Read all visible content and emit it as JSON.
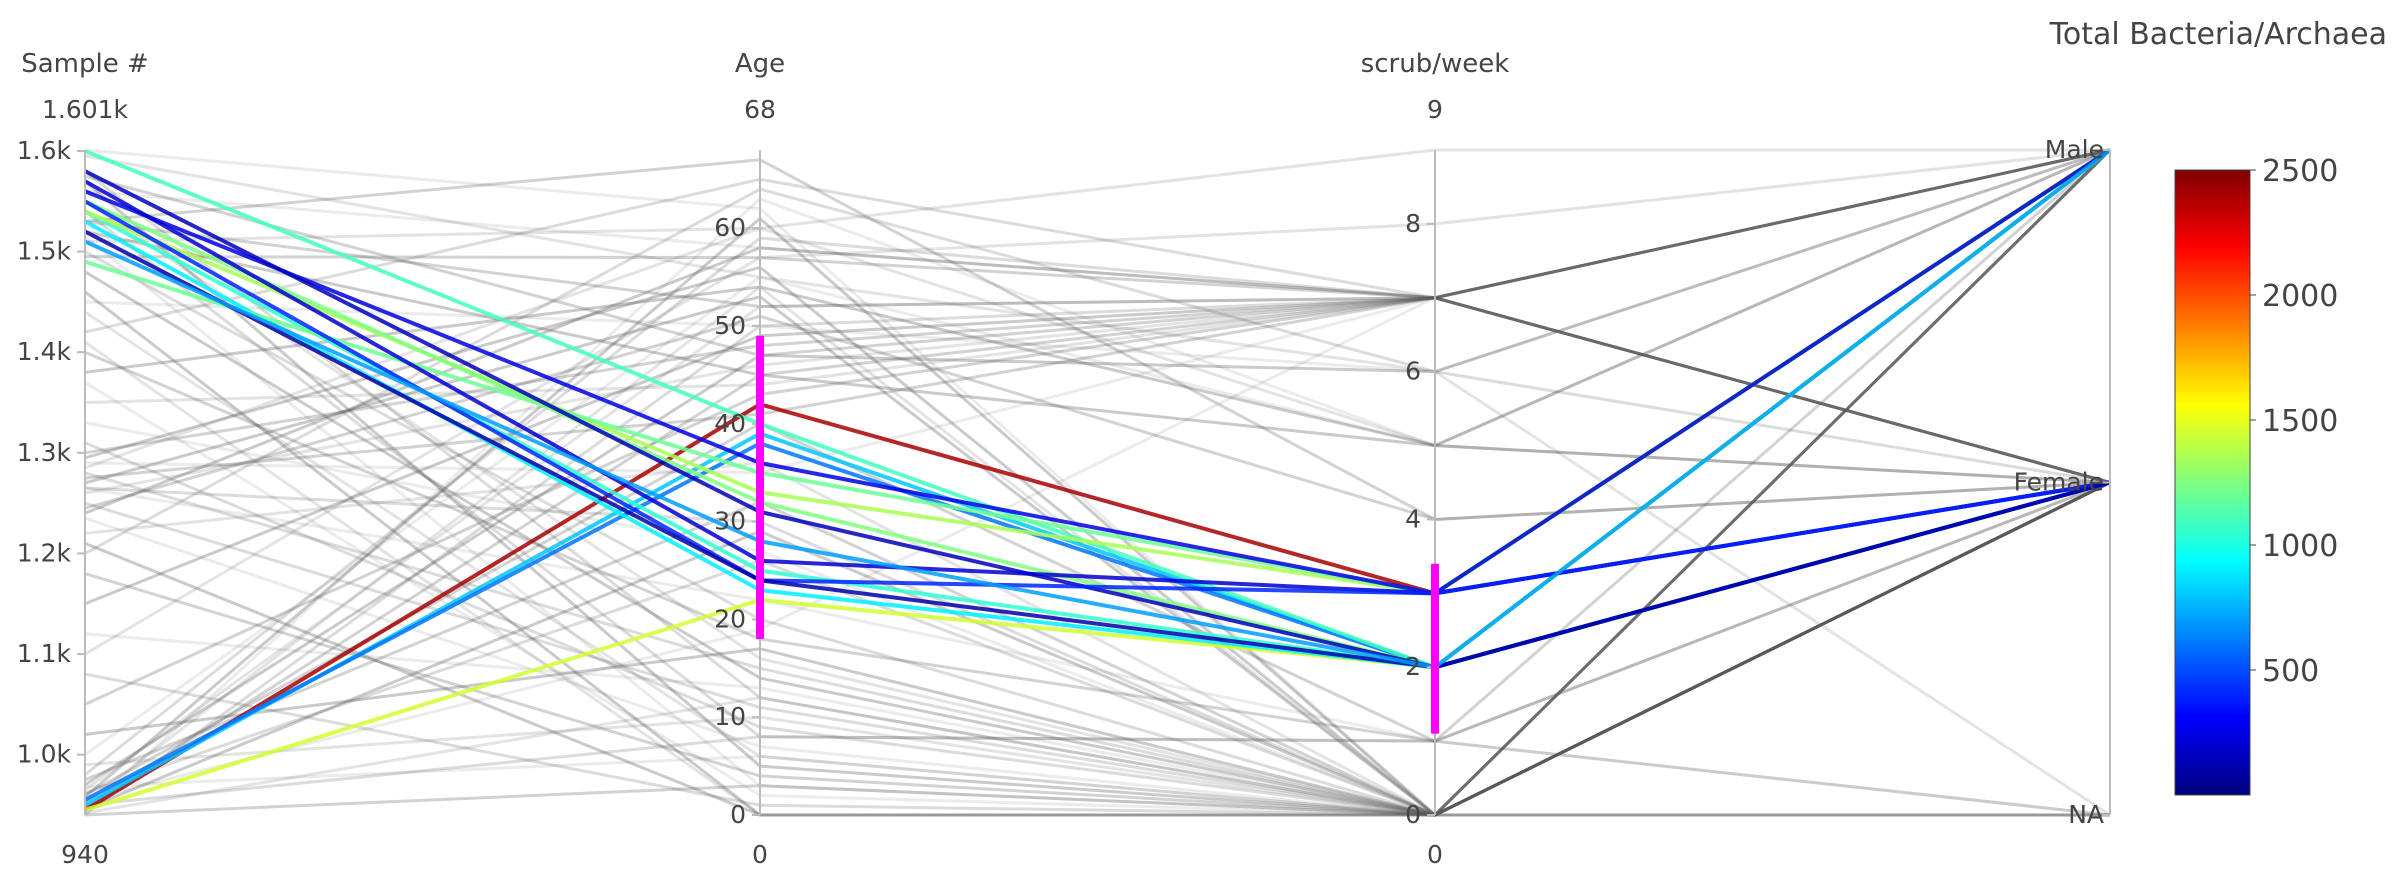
{
  "chart_data": {
    "type": "parallel_coordinates",
    "title": "",
    "dimensions": [
      {
        "label": "Sample #",
        "range": [
          940,
          1601
        ],
        "max_label": "1.601k",
        "min_label": "940",
        "ticks": [
          {
            "v": 1000,
            "label": "1.0k"
          },
          {
            "v": 1100,
            "label": "1.1k"
          },
          {
            "v": 1200,
            "label": "1.2k"
          },
          {
            "v": 1300,
            "label": "1.3k"
          },
          {
            "v": 1400,
            "label": "1.4k"
          },
          {
            "v": 1500,
            "label": "1.5k"
          },
          {
            "v": 1600,
            "label": "1.6k"
          }
        ]
      },
      {
        "label": "Age",
        "range": [
          0,
          68
        ],
        "max_label": "68",
        "min_label": "0",
        "ticks": [
          {
            "v": 0,
            "label": "0"
          },
          {
            "v": 10,
            "label": "10"
          },
          {
            "v": 20,
            "label": "20"
          },
          {
            "v": 30,
            "label": "30"
          },
          {
            "v": 40,
            "label": "40"
          },
          {
            "v": 50,
            "label": "50"
          },
          {
            "v": 60,
            "label": "60"
          }
        ],
        "constraint": [
          18,
          49
        ]
      },
      {
        "label": "scrub/week",
        "range": [
          0,
          9
        ],
        "max_label": "9",
        "min_label": "0",
        "ticks": [
          {
            "v": 0,
            "label": "0"
          },
          {
            "v": 2,
            "label": "2"
          },
          {
            "v": 4,
            "label": "4"
          },
          {
            "v": 6,
            "label": "6"
          },
          {
            "v": 8,
            "label": "8"
          }
        ],
        "constraint": [
          1.1,
          3.4
        ]
      },
      {
        "label": "",
        "range": [
          0,
          2
        ],
        "ticks": [
          {
            "v": 0,
            "label": "NA"
          },
          {
            "v": 1,
            "label": "Female"
          },
          {
            "v": 2,
            "label": "Male"
          }
        ]
      }
    ],
    "colorscale": {
      "title": "Total Bacteria/Archaea",
      "range": [
        0,
        2500
      ],
      "ticks": [
        500,
        1000,
        1500,
        2000,
        2500
      ],
      "colors": [
        "#00007f",
        "#0000ff",
        "#007fff",
        "#00ffff",
        "#7fff7f",
        "#ffff00",
        "#ff7f00",
        "#ff0000",
        "#7f0000"
      ]
    },
    "highlighted_lines": [
      {
        "values": [
          945,
          42,
          3,
          1
        ],
        "color_value": 2400
      },
      {
        "values": [
          945,
          22,
          2,
          1
        ],
        "color_value": 1450
      },
      {
        "values": [
          950,
          39,
          2,
          2
        ],
        "color_value": 800
      },
      {
        "values": [
          955,
          38,
          2,
          2
        ],
        "color_value": 600
      },
      {
        "values": [
          1600,
          40,
          2,
          2
        ],
        "color_value": 1100
      },
      {
        "values": [
          1540,
          25,
          2,
          1
        ],
        "color_value": 1050
      },
      {
        "values": [
          1540,
          33,
          3,
          2
        ],
        "color_value": 1350
      },
      {
        "values": [
          1530,
          23,
          2,
          1
        ],
        "color_value": 900
      },
      {
        "values": [
          1490,
          35,
          3,
          2
        ],
        "color_value": 1200
      },
      {
        "values": [
          1550,
          32,
          2,
          2
        ],
        "color_value": 1250
      },
      {
        "values": [
          1560,
          36,
          3,
          1
        ],
        "color_value": 250
      },
      {
        "values": [
          1580,
          31,
          2,
          1
        ],
        "color_value": 150
      },
      {
        "values": [
          1570,
          26,
          3,
          2
        ],
        "color_value": 200
      },
      {
        "values": [
          1550,
          24,
          3,
          1
        ],
        "color_value": 400
      },
      {
        "values": [
          1520,
          24,
          2,
          1
        ],
        "color_value": 100
      },
      {
        "values": [
          1510,
          28,
          2,
          2
        ],
        "color_value": 700
      }
    ],
    "context_lines": [
      [
        1601,
        62,
        0,
        1
      ],
      [
        1595,
        55,
        6,
        0
      ],
      [
        1580,
        12,
        0,
        2
      ],
      [
        1575,
        47,
        7,
        2
      ],
      [
        1570,
        5,
        0,
        1
      ],
      [
        1560,
        58,
        7,
        1
      ],
      [
        1550,
        16,
        0,
        2
      ],
      [
        1540,
        8,
        1,
        0
      ],
      [
        1530,
        52,
        7,
        1
      ],
      [
        1520,
        45,
        5,
        2
      ],
      [
        1515,
        3,
        0,
        1
      ],
      [
        1510,
        60,
        9,
        2
      ],
      [
        1500,
        20,
        0,
        2
      ],
      [
        1495,
        57,
        7,
        1
      ],
      [
        1480,
        14,
        0,
        1
      ],
      [
        1450,
        50,
        6,
        2
      ],
      [
        1440,
        6,
        0,
        0
      ],
      [
        1420,
        65,
        7,
        1
      ],
      [
        1400,
        18,
        1,
        2
      ],
      [
        1380,
        54,
        5,
        1
      ],
      [
        1370,
        2,
        0,
        1
      ],
      [
        1350,
        44,
        7,
        2
      ],
      [
        1310,
        9,
        0,
        1
      ],
      [
        1300,
        48,
        7,
        2
      ],
      [
        1295,
        56,
        0,
        1
      ],
      [
        1290,
        35,
        7,
        1
      ],
      [
        1285,
        60,
        5,
        2
      ],
      [
        1280,
        15,
        0,
        1
      ],
      [
        1275,
        41,
        7,
        2
      ],
      [
        1270,
        53,
        0,
        1
      ],
      [
        1265,
        22,
        1,
        0
      ],
      [
        1260,
        46,
        7,
        1
      ],
      [
        1250,
        11,
        0,
        2
      ],
      [
        1245,
        51,
        4,
        1
      ],
      [
        1240,
        58,
        7,
        2
      ],
      [
        1235,
        7,
        0,
        1
      ],
      [
        1220,
        36,
        0,
        1
      ],
      [
        1200,
        64,
        6,
        1
      ],
      [
        1180,
        4,
        0,
        2
      ],
      [
        1150,
        49,
        7,
        1
      ],
      [
        1120,
        13,
        0,
        1
      ],
      [
        1100,
        57,
        8,
        2
      ],
      [
        1080,
        1,
        0,
        1
      ],
      [
        1050,
        43,
        7,
        2
      ],
      [
        1020,
        17,
        0,
        1
      ],
      [
        1000,
        55,
        5,
        1
      ],
      [
        990,
        10,
        0,
        2
      ],
      [
        980,
        59,
        7,
        1
      ],
      [
        975,
        32,
        0,
        1
      ],
      [
        970,
        47,
        6,
        2
      ],
      [
        968,
        6,
        0,
        1
      ],
      [
        965,
        52,
        7,
        1
      ],
      [
        962,
        26,
        0,
        2
      ],
      [
        960,
        40,
        1,
        1
      ],
      [
        958,
        61,
        0,
        1
      ],
      [
        955,
        19,
        7,
        2
      ],
      [
        952,
        54,
        0,
        1
      ],
      [
        950,
        8,
        1,
        1
      ],
      [
        948,
        45,
        7,
        2
      ],
      [
        946,
        29,
        0,
        1
      ],
      [
        944,
        63,
        5,
        1
      ],
      [
        942,
        12,
        0,
        2
      ],
      [
        941,
        50,
        7,
        1
      ],
      [
        940,
        3,
        0,
        1
      ],
      [
        1460,
        0,
        0,
        0
      ],
      [
        1330,
        27,
        0,
        1
      ],
      [
        1410,
        0,
        0,
        2
      ],
      [
        1265,
        30,
        0,
        1
      ],
      [
        1530,
        67,
        4,
        1
      ],
      [
        1210,
        0,
        0,
        0
      ]
    ]
  }
}
